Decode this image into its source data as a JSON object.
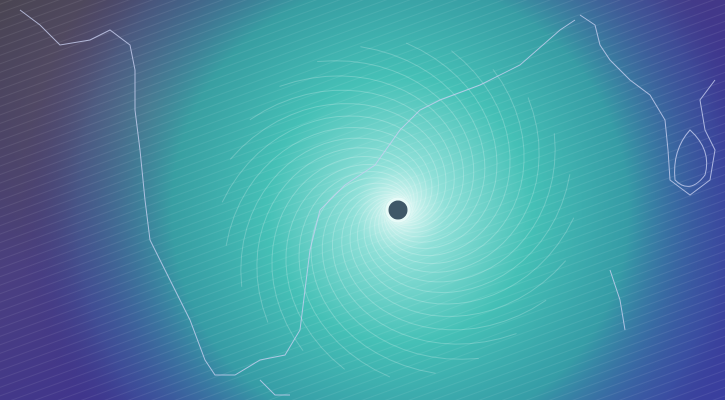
{
  "map": {
    "type": "wind-animation",
    "colors": {
      "land_dry": "#5a5560",
      "low_wind": "#3a2f8a",
      "mid_wind": "#4a5aa8",
      "high_wind": "#3fb8b0",
      "storm_core": "#d8f4f0",
      "eye": "#3a4a60",
      "coastline": "#c8d0f0"
    },
    "features": [
      "cyclone-spiral",
      "cyclone-eye",
      "coastline"
    ]
  }
}
